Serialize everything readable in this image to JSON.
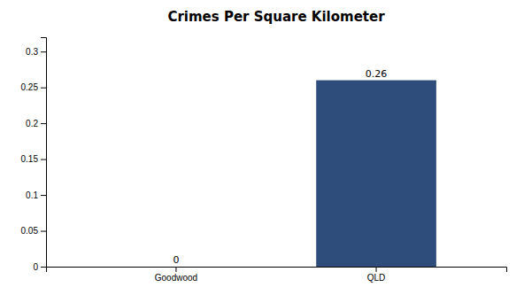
{
  "chart_data": {
    "type": "bar",
    "title": "Crimes Per Square Kilometer",
    "categories": [
      "Goodwood",
      "QLD"
    ],
    "values": [
      0,
      0.26
    ],
    "color": "#2e4d7b",
    "ylim": [
      0,
      0.32
    ],
    "yticks": [
      0,
      0.05,
      0.1,
      0.15,
      0.2,
      0.25,
      0.3
    ],
    "grid": false,
    "data_labels": true
  }
}
